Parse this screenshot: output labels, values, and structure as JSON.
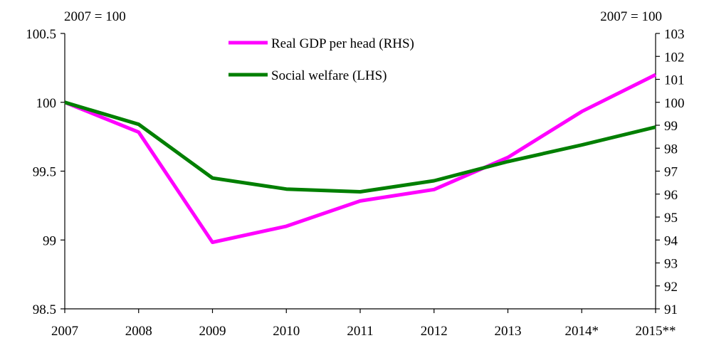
{
  "chart_data": {
    "type": "line",
    "x": [
      "2007",
      "2008",
      "2009",
      "2010",
      "2011",
      "2012",
      "2013",
      "2014*",
      "2015**"
    ],
    "left_axis": {
      "label": "2007 = 100",
      "ylim": [
        98.5,
        100.5
      ],
      "ticks": [
        98.5,
        99,
        99.5,
        100,
        100.5
      ],
      "tick_labels": [
        "98.5",
        "99",
        "99.5",
        "100",
        "100.5"
      ]
    },
    "right_axis": {
      "label": "2007 = 100",
      "ylim": [
        91,
        103
      ],
      "ticks": [
        91,
        92,
        93,
        94,
        95,
        96,
        97,
        98,
        99,
        100,
        101,
        102,
        103
      ],
      "tick_labels": [
        "91",
        "92",
        "93",
        "94",
        "95",
        "96",
        "97",
        "98",
        "99",
        "100",
        "101",
        "102",
        "103"
      ]
    },
    "series": [
      {
        "name": "Real GDP per head (RHS)",
        "axis": "right",
        "color": "#ff00ff",
        "values": [
          100.0,
          98.7,
          93.9,
          94.6,
          95.7,
          96.2,
          97.6,
          99.6,
          101.2
        ]
      },
      {
        "name": "Social welfare (LHS)",
        "axis": "left",
        "color": "#007f00",
        "values": [
          100.0,
          99.84,
          99.45,
          99.37,
          99.35,
          99.43,
          99.57,
          99.69,
          99.82
        ]
      }
    ],
    "grid": false,
    "legend": "top-center"
  }
}
